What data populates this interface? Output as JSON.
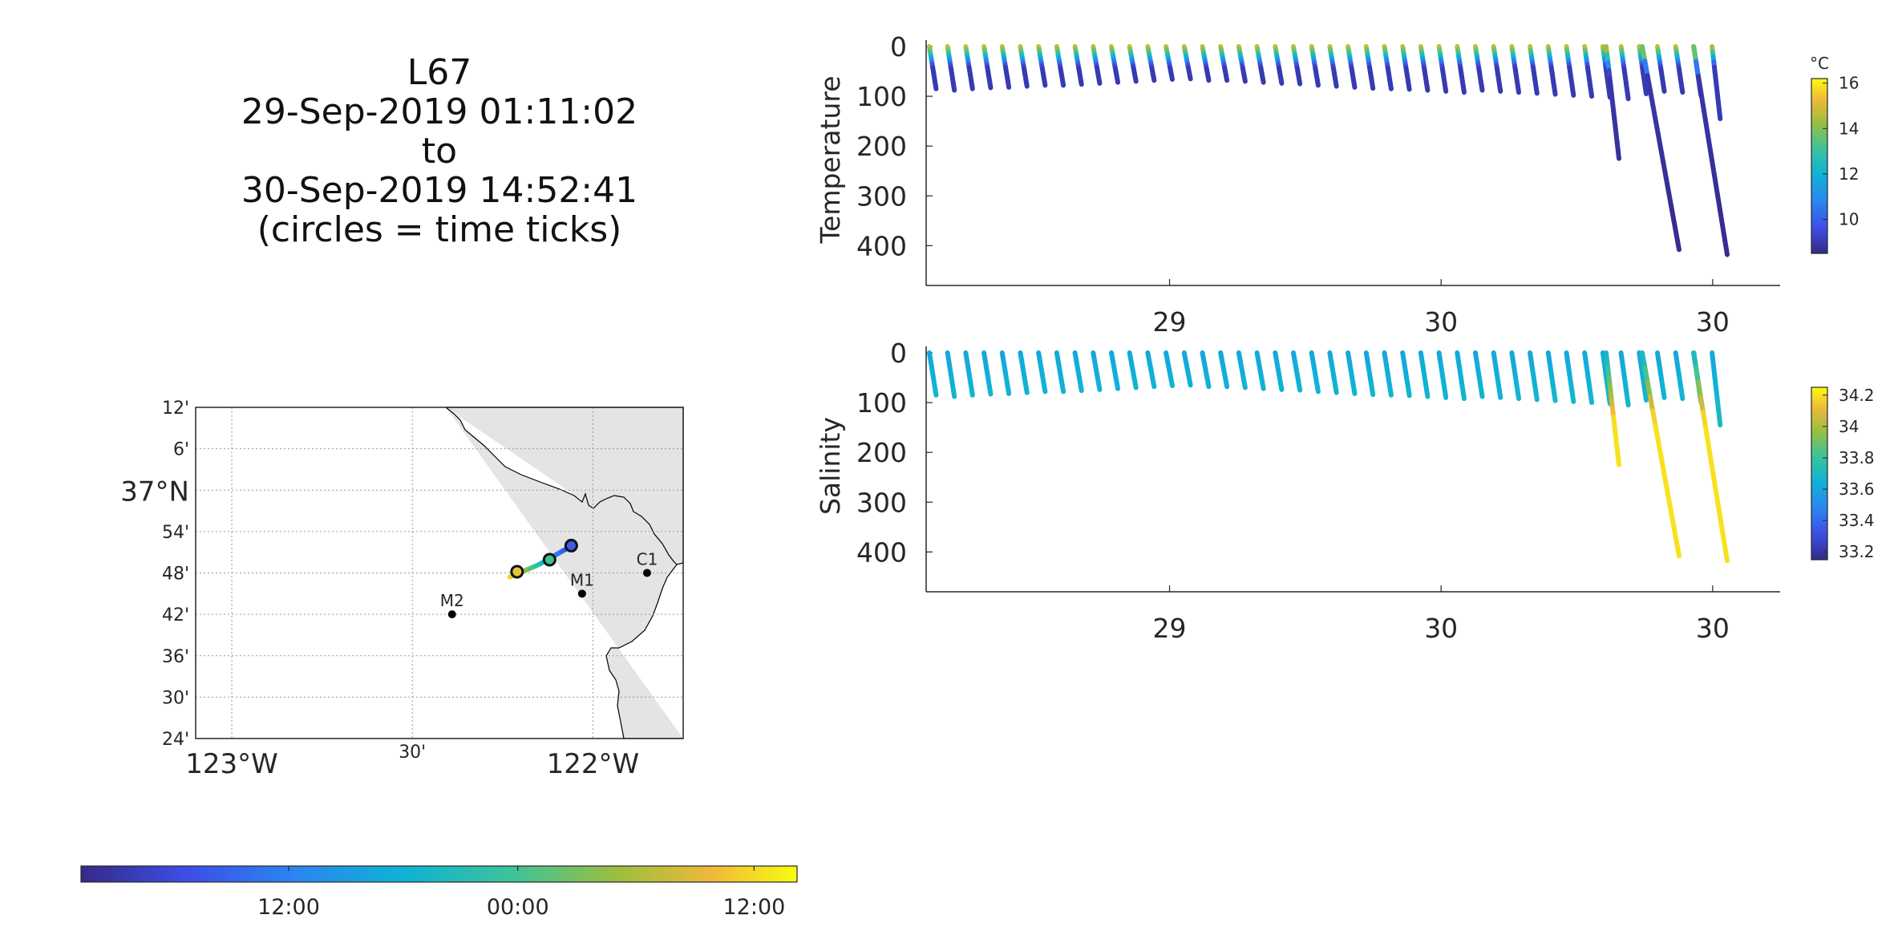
{
  "title": {
    "line1": "L67",
    "line2": "29-Sep-2019 01:11:02",
    "line3": "to",
    "line4": "30-Sep-2019 14:52:41",
    "line5": "(circles = time ticks)"
  },
  "map": {
    "lat_ticks": [
      "12'",
      "6'",
      "37°N",
      "54'",
      "48'",
      "42'",
      "36'",
      "30'",
      "24'"
    ],
    "lat_values": [
      37.2,
      37.1,
      37.0,
      36.9,
      36.8,
      36.7,
      36.6,
      36.5,
      36.4
    ],
    "lon_ticks": [
      "123°W",
      "30'",
      "122°W"
    ],
    "lon_values": [
      -123.0,
      -122.5,
      -122.0
    ],
    "lat_range": [
      36.4,
      37.2
    ],
    "lon_range": [
      -123.1,
      -121.75
    ],
    "grid": true,
    "land_color": "#e4e4e4",
    "stations": [
      {
        "name": "M2",
        "lon": -122.39,
        "lat": 36.7
      },
      {
        "name": "M1",
        "lon": -122.03,
        "lat": 36.75
      },
      {
        "name": "C1",
        "lon": -121.85,
        "lat": 36.8
      }
    ],
    "track": [
      {
        "lon": -122.23,
        "lat": 36.79
      },
      {
        "lon": -122.15,
        "lat": 36.82
      },
      {
        "lon": -122.07,
        "lat": 36.86
      }
    ],
    "time_tick_circles": [
      {
        "lon": -122.06,
        "lat": 36.866,
        "color": "#3e5ae6"
      },
      {
        "lon": -122.12,
        "lat": 36.832,
        "color": "#3ec38f"
      },
      {
        "lon": -122.21,
        "lat": 36.803,
        "color": "#e8c23a"
      }
    ]
  },
  "time_colorbar": {
    "tick_labels": [
      "12:00",
      "00:00",
      "12:00"
    ],
    "tick_fractions": [
      0.29,
      0.61,
      0.94
    ]
  },
  "chart_data": [
    {
      "type": "scatter",
      "title": "",
      "xlabel": "",
      "ylabel": "Temperature",
      "ylim": [
        0,
        480
      ],
      "y_reversed": true,
      "yticks": [
        "0",
        "100",
        "200",
        "300",
        "400"
      ],
      "xticks": [
        "29",
        "30",
        "30"
      ],
      "xtick_fractions": [
        0.285,
        0.603,
        0.921
      ],
      "colorbar": {
        "unit": "°C",
        "ticks": [
          "16",
          "14",
          "12",
          "10"
        ],
        "tick_values": [
          16,
          14,
          12,
          10
        ],
        "range": [
          8.5,
          16.2
        ]
      },
      "profiles": {
        "count": 47,
        "max_depths": [
          85,
          88,
          85,
          83,
          82,
          80,
          78,
          78,
          76,
          74,
          72,
          70,
          68,
          66,
          65,
          68,
          68,
          70,
          72,
          74,
          75,
          78,
          80,
          82,
          84,
          85,
          86,
          88,
          90,
          92,
          88,
          90,
          92,
          94,
          96,
          98,
          100,
          102,
          105,
          95,
          90,
          92,
          98,
          145,
          225,
          408,
          418
        ]
      },
      "color_scale": {
        "surface_value": 15.2,
        "deep_value": 9.0
      }
    },
    {
      "type": "scatter",
      "title": "",
      "xlabel": "",
      "ylabel": "Salinity",
      "ylim": [
        0,
        480
      ],
      "y_reversed": true,
      "yticks": [
        "0",
        "100",
        "200",
        "300",
        "400"
      ],
      "xticks": [
        "29",
        "30",
        "30"
      ],
      "xtick_fractions": [
        0.285,
        0.603,
        0.921
      ],
      "colorbar": {
        "unit": "",
        "ticks": [
          "34.2",
          "34",
          "33.8",
          "33.6",
          "33.4",
          "33.2"
        ],
        "tick_values": [
          34.2,
          34.0,
          33.8,
          33.6,
          33.4,
          33.2
        ],
        "range": [
          33.15,
          34.25
        ]
      },
      "profiles": {
        "count": 47,
        "max_depths": [
          85,
          88,
          85,
          83,
          82,
          80,
          78,
          78,
          76,
          74,
          72,
          70,
          68,
          66,
          65,
          68,
          68,
          70,
          72,
          74,
          75,
          78,
          80,
          82,
          84,
          85,
          86,
          88,
          90,
          92,
          88,
          90,
          92,
          94,
          96,
          98,
          100,
          102,
          105,
          95,
          90,
          92,
          98,
          145,
          225,
          408,
          418
        ]
      },
      "color_scale": {
        "surface_value": 33.65,
        "deep_value": 34.2
      }
    }
  ]
}
